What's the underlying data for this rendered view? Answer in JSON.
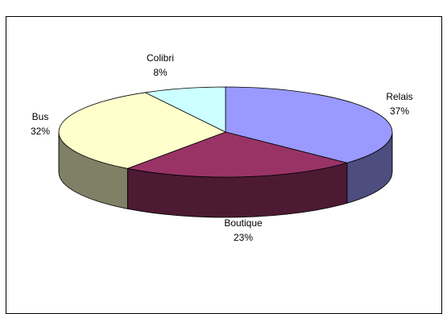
{
  "chart_data": {
    "type": "pie",
    "style": "3d-pie",
    "slices": [
      {
        "label": "Relais",
        "value": 37,
        "display": "37%",
        "color": "#9999ff",
        "side_color": "#4d4d80"
      },
      {
        "label": "Boutique",
        "value": 23,
        "display": "23%",
        "color": "#993366",
        "side_color": "#4d1a33"
      },
      {
        "label": "Bus",
        "value": 32,
        "display": "32%",
        "color": "#ffffcc",
        "side_color": "#808066"
      },
      {
        "label": "Colibri",
        "value": 8,
        "display": "8%",
        "color": "#ccffff",
        "side_color": "#668080"
      }
    ],
    "legend": "none"
  }
}
